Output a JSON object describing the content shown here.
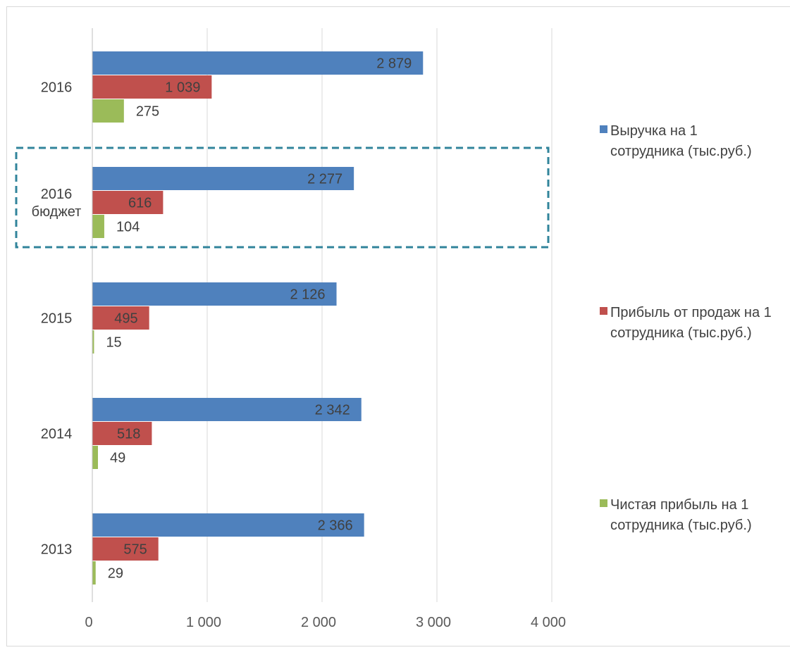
{
  "chart_data": {
    "type": "bar",
    "orientation": "horizontal",
    "title": "",
    "xlabel": "",
    "ylabel": "",
    "categories": [
      "2016",
      "2016\nбюджет",
      "2015",
      "2014",
      "2013"
    ],
    "series": [
      {
        "name": "Выручка на 1 сотрудника (тыс.руб.)",
        "color": "#4f81bd",
        "values": [
          2879,
          2277,
          2126,
          2342,
          2366
        ],
        "labels": [
          "2 879",
          "2 277",
          "2 126",
          "2 342",
          "2 366"
        ]
      },
      {
        "name": "Прибыль от продаж на 1 сотрудника (тыс.руб.)",
        "color": "#c0504d",
        "values": [
          1039,
          616,
          495,
          518,
          575
        ],
        "labels": [
          "1 039",
          "616",
          "495",
          "518",
          "575"
        ]
      },
      {
        "name": "Чистая прибыль на 1 сотрудника (тыс.руб.)",
        "color": "#9bbb59",
        "values": [
          275,
          104,
          15,
          49,
          29
        ],
        "labels": [
          "275",
          "104",
          "15",
          "49",
          "29"
        ]
      }
    ],
    "xlim": [
      0,
      4000
    ],
    "xticks": [
      0,
      1000,
      2000,
      3000,
      4000
    ],
    "xtick_labels": [
      "0",
      "1 000",
      "2 000",
      "3 000",
      "4 000"
    ],
    "grid": "vertical",
    "legend_position": "right",
    "highlight": {
      "category": "2016\nбюджет",
      "style": "dashed-box",
      "color": "#31849b"
    }
  }
}
